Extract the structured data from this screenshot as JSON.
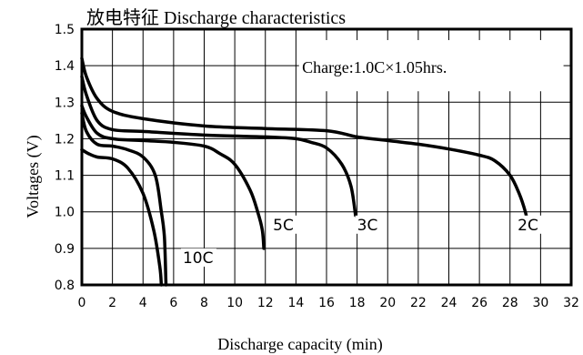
{
  "chart_data": {
    "type": "line",
    "title": "放电特征 Discharge characteristics",
    "annotation": "Charge:1.0C×1.05hrs.",
    "xlabel": "Discharge capacity (min)",
    "ylabel": "Voltages (V)",
    "xlim": [
      0,
      32
    ],
    "ylim": [
      0.8,
      1.5
    ],
    "x_ticks": [
      "0",
      "2",
      "4",
      "6",
      "8",
      "10",
      "12",
      "14",
      "16",
      "18",
      "20",
      "22",
      "24",
      "26",
      "28",
      "30",
      "32"
    ],
    "y_ticks": [
      "0.8",
      "0.9",
      "1.0",
      "1.1",
      "1.2",
      "1.3",
      "1.4",
      "1.5"
    ],
    "grid": true,
    "series": [
      {
        "name": "2C",
        "points": [
          [
            0,
            1.42
          ],
          [
            0.3,
            1.37
          ],
          [
            1,
            1.31
          ],
          [
            2,
            1.275
          ],
          [
            4,
            1.255
          ],
          [
            8,
            1.235
          ],
          [
            12,
            1.228
          ],
          [
            16,
            1.222
          ],
          [
            18,
            1.205
          ],
          [
            20,
            1.195
          ],
          [
            22,
            1.185
          ],
          [
            24,
            1.172
          ],
          [
            26,
            1.155
          ],
          [
            27,
            1.14
          ],
          [
            28,
            1.1
          ],
          [
            28.6,
            1.05
          ],
          [
            29,
            1.0
          ],
          [
            29.2,
            0.96
          ]
        ]
      },
      {
        "name": "3C",
        "points": [
          [
            0,
            1.37
          ],
          [
            0.3,
            1.32
          ],
          [
            1,
            1.25
          ],
          [
            2,
            1.225
          ],
          [
            4,
            1.22
          ],
          [
            8,
            1.21
          ],
          [
            12,
            1.205
          ],
          [
            14,
            1.2
          ],
          [
            15,
            1.19
          ],
          [
            16,
            1.175
          ],
          [
            17,
            1.13
          ],
          [
            17.6,
            1.07
          ],
          [
            17.9,
            0.99
          ]
        ]
      },
      {
        "name": "5C",
        "points": [
          [
            0,
            1.29
          ],
          [
            0.3,
            1.26
          ],
          [
            1,
            1.215
          ],
          [
            2,
            1.2
          ],
          [
            4,
            1.195
          ],
          [
            6,
            1.19
          ],
          [
            8,
            1.18
          ],
          [
            9,
            1.16
          ],
          [
            10,
            1.13
          ],
          [
            11,
            1.06
          ],
          [
            11.5,
            1.0
          ],
          [
            11.8,
            0.95
          ],
          [
            11.9,
            0.9
          ]
        ]
      },
      {
        "name": "10C",
        "points": [
          [
            0,
            1.27
          ],
          [
            0.3,
            1.22
          ],
          [
            1,
            1.185
          ],
          [
            2,
            1.18
          ],
          [
            3,
            1.17
          ],
          [
            4,
            1.15
          ],
          [
            4.8,
            1.1
          ],
          [
            5.2,
            1.0
          ],
          [
            5.4,
            0.93
          ],
          [
            5.5,
            0.8
          ]
        ]
      },
      {
        "name": "",
        "points": [
          [
            0,
            1.17
          ],
          [
            0.4,
            1.16
          ],
          [
            1,
            1.15
          ],
          [
            2,
            1.145
          ],
          [
            3,
            1.12
          ],
          [
            4,
            1.05
          ],
          [
            4.7,
            0.95
          ],
          [
            5.1,
            0.85
          ],
          [
            5.2,
            0.8
          ]
        ]
      }
    ],
    "series_labels": [
      {
        "text": "2C",
        "x": 28.5,
        "y": 0.95
      },
      {
        "text": "3C",
        "x": 18.0,
        "y": 0.95
      },
      {
        "text": "5C",
        "x": 12.5,
        "y": 0.95
      },
      {
        "text": "10C",
        "x": 6.6,
        "y": 0.86
      }
    ]
  },
  "colors": {
    "line": "#000000",
    "grid": "#000000",
    "background": "#ffffff"
  }
}
